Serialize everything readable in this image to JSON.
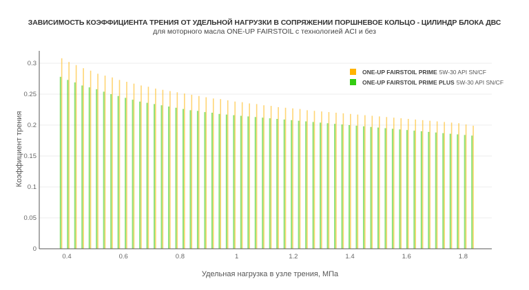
{
  "chart_data": {
    "type": "bar",
    "title": "ЗАВИСИМОСТЬ КОЭФФИЦИЕНТА ТРЕНИЯ ОТ УДЕЛЬНОЙ НАГРУЗКИ В СОПРЯЖЕНИИ ПОРШНЕВОЕ КОЛЬЦО - ЦИЛИНДР БЛОКА ДВС",
    "subtitle": "для моторного масла  ONE-UP FAIRSTOIL с технологией ACI и без",
    "xlabel": "Удельная нагрузка в узле трения, МПа",
    "ylabel": "Коэффициент трения",
    "xlim": [
      0.33,
      1.93
    ],
    "ylim": [
      0,
      0.32
    ],
    "xticks": [
      0.4,
      0.6,
      0.8,
      1,
      1.2,
      1.4,
      1.6,
      1.8
    ],
    "xtick_labels": [
      "0.4",
      "0.6",
      "0.8",
      "1",
      "1.2",
      "1.4",
      "1.6",
      "1.8"
    ],
    "yticks": [
      0,
      0.05,
      0.1,
      0.15,
      0.2,
      0.25,
      0.3
    ],
    "ytick_labels": [
      "0",
      "0.05",
      "0.1",
      "0.15",
      "0.2",
      "0.25",
      "0.3"
    ],
    "grid": true,
    "legend_position": "top-right",
    "x_start": 0.378,
    "x_step": 0.0255,
    "series": [
      {
        "name": "ONE-UP FAIRSTOIL PRIME",
        "suffix": "5W-30 API SN/CF",
        "color": "#FFB300",
        "values": [
          0.308,
          0.302,
          0.297,
          0.292,
          0.288,
          0.283,
          0.28,
          0.277,
          0.273,
          0.27,
          0.267,
          0.264,
          0.262,
          0.259,
          0.257,
          0.255,
          0.253,
          0.251,
          0.249,
          0.247,
          0.245,
          0.243,
          0.242,
          0.24,
          0.238,
          0.237,
          0.235,
          0.234,
          0.232,
          0.231,
          0.229,
          0.228,
          0.227,
          0.226,
          0.224,
          0.223,
          0.222,
          0.221,
          0.22,
          0.219,
          0.218,
          0.217,
          0.216,
          0.215,
          0.214,
          0.213,
          0.212,
          0.211,
          0.21,
          0.209,
          0.208,
          0.207,
          0.206,
          0.205,
          0.204,
          0.203,
          0.201,
          0.199
        ]
      },
      {
        "name": "ONE-UP FAIRSTOIL PRIME PLUS",
        "suffix": "5W-30 API SN/CF",
        "color": "#33CC11",
        "values": [
          0.278,
          0.273,
          0.269,
          0.264,
          0.261,
          0.258,
          0.254,
          0.25,
          0.247,
          0.244,
          0.241,
          0.238,
          0.236,
          0.234,
          0.232,
          0.23,
          0.228,
          0.226,
          0.224,
          0.223,
          0.221,
          0.22,
          0.218,
          0.217,
          0.216,
          0.215,
          0.214,
          0.213,
          0.212,
          0.211,
          0.21,
          0.209,
          0.208,
          0.207,
          0.206,
          0.205,
          0.204,
          0.203,
          0.202,
          0.201,
          0.2,
          0.199,
          0.198,
          0.197,
          0.196,
          0.195,
          0.194,
          0.193,
          0.192,
          0.191,
          0.19,
          0.189,
          0.188,
          0.187,
          0.186,
          0.185,
          0.184,
          0.183
        ]
      }
    ]
  }
}
